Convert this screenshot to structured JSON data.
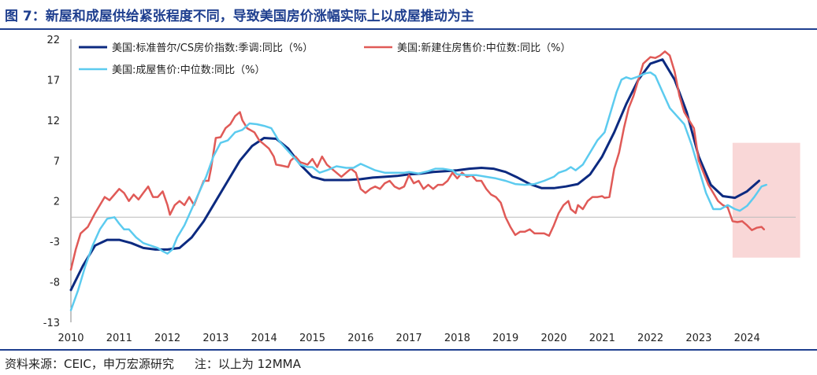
{
  "header": {
    "title": "图 7：新屋和成屋供给紧张程度不同，导致美国房价涨幅实际上以成屋推动为主"
  },
  "footer": {
    "source": "资料来源：CEIC，申万宏源研究",
    "note": "注：以上为 12MMA"
  },
  "chart_data": {
    "type": "line",
    "title": "",
    "xlabel": "",
    "ylabel": "",
    "ylim": [
      -13,
      22
    ],
    "yticks": [
      -13,
      -8,
      -3,
      2,
      7,
      12,
      17,
      22
    ],
    "xlim": [
      2010,
      2025
    ],
    "xticks": [
      "2010",
      "2011",
      "2012",
      "2013",
      "2014",
      "2015",
      "2016",
      "2017",
      "2018",
      "2019",
      "2020",
      "2021",
      "2022",
      "2023",
      "2024"
    ],
    "grid": false,
    "legend": "top-left",
    "highlight_region": {
      "x": [
        2023.7,
        2025.1
      ],
      "y": [
        -5,
        9.2
      ],
      "color": "#f9d7d7"
    },
    "series": [
      {
        "name": "美国:标准普尔/CS房价指数:季调:同比（%）",
        "color": "#0c2a80",
        "points": [
          [
            2010.0,
            -9
          ],
          [
            2010.25,
            -6
          ],
          [
            2010.5,
            -3.5
          ],
          [
            2010.75,
            -2.8
          ],
          [
            2011.0,
            -2.8
          ],
          [
            2011.25,
            -3.2
          ],
          [
            2011.5,
            -3.8
          ],
          [
            2011.75,
            -4
          ],
          [
            2012.0,
            -4
          ],
          [
            2012.25,
            -3.8
          ],
          [
            2012.5,
            -2.5
          ],
          [
            2012.75,
            -0.5
          ],
          [
            2013.0,
            2
          ],
          [
            2013.25,
            4.5
          ],
          [
            2013.5,
            7
          ],
          [
            2013.75,
            8.8
          ],
          [
            2014.0,
            9.8
          ],
          [
            2014.25,
            9.7
          ],
          [
            2014.5,
            8.5
          ],
          [
            2014.75,
            6.5
          ],
          [
            2015.0,
            5
          ],
          [
            2015.25,
            4.6
          ],
          [
            2015.5,
            4.6
          ],
          [
            2015.75,
            4.6
          ],
          [
            2016.0,
            4.7
          ],
          [
            2016.25,
            4.9
          ],
          [
            2016.5,
            5
          ],
          [
            2016.75,
            5.1
          ],
          [
            2017.0,
            5.3
          ],
          [
            2017.25,
            5.4
          ],
          [
            2017.5,
            5.6
          ],
          [
            2017.75,
            5.7
          ],
          [
            2018.0,
            5.8
          ],
          [
            2018.25,
            6
          ],
          [
            2018.5,
            6.1
          ],
          [
            2018.75,
            6
          ],
          [
            2019.0,
            5.6
          ],
          [
            2019.25,
            4.9
          ],
          [
            2019.5,
            4.1
          ],
          [
            2019.75,
            3.6
          ],
          [
            2020.0,
            3.6
          ],
          [
            2020.25,
            3.8
          ],
          [
            2020.5,
            4.1
          ],
          [
            2020.75,
            5.3
          ],
          [
            2021.0,
            7.5
          ],
          [
            2021.25,
            10.5
          ],
          [
            2021.5,
            14
          ],
          [
            2021.75,
            17
          ],
          [
            2022.0,
            19
          ],
          [
            2022.25,
            19.5
          ],
          [
            2022.5,
            17
          ],
          [
            2022.75,
            13
          ],
          [
            2023.0,
            7.5
          ],
          [
            2023.25,
            4
          ],
          [
            2023.5,
            2.6
          ],
          [
            2023.75,
            2.4
          ],
          [
            2024.0,
            3.2
          ],
          [
            2024.25,
            4.5
          ]
        ]
      },
      {
        "name": "美国:新建住房售价:中位数:同比（%）",
        "color": "#e05a57",
        "points": [
          [
            2010.0,
            -6.5
          ],
          [
            2010.1,
            -4
          ],
          [
            2010.2,
            -2
          ],
          [
            2010.35,
            -1.2
          ],
          [
            2010.5,
            0.5
          ],
          [
            2010.6,
            1.5
          ],
          [
            2010.7,
            2.5
          ],
          [
            2010.8,
            2.1
          ],
          [
            2010.9,
            2.8
          ],
          [
            2011.0,
            3.5
          ],
          [
            2011.1,
            3
          ],
          [
            2011.2,
            2
          ],
          [
            2011.3,
            2.8
          ],
          [
            2011.4,
            2.2
          ],
          [
            2011.5,
            3
          ],
          [
            2011.6,
            3.8
          ],
          [
            2011.7,
            2.5
          ],
          [
            2011.8,
            2.5
          ],
          [
            2011.9,
            3.2
          ],
          [
            2012.0,
            1.5
          ],
          [
            2012.05,
            0.3
          ],
          [
            2012.15,
            1.5
          ],
          [
            2012.25,
            2
          ],
          [
            2012.35,
            1.5
          ],
          [
            2012.45,
            2.5
          ],
          [
            2012.55,
            1.5
          ],
          [
            2012.65,
            3
          ],
          [
            2012.75,
            4.5
          ],
          [
            2012.85,
            4.5
          ],
          [
            2012.9,
            6
          ],
          [
            2013.0,
            9.8
          ],
          [
            2013.1,
            9.9
          ],
          [
            2013.2,
            11
          ],
          [
            2013.3,
            11.5
          ],
          [
            2013.4,
            12.5
          ],
          [
            2013.5,
            13
          ],
          [
            2013.55,
            12
          ],
          [
            2013.65,
            11
          ],
          [
            2013.8,
            10.5
          ],
          [
            2013.9,
            9.5
          ],
          [
            2014.0,
            9
          ],
          [
            2014.1,
            8.5
          ],
          [
            2014.2,
            7.5
          ],
          [
            2014.25,
            6.5
          ],
          [
            2014.35,
            6.4
          ],
          [
            2014.5,
            6.2
          ],
          [
            2014.55,
            7
          ],
          [
            2014.65,
            7.5
          ],
          [
            2014.75,
            6.8
          ],
          [
            2014.9,
            6.5
          ],
          [
            2015.0,
            7.2
          ],
          [
            2015.1,
            6.2
          ],
          [
            2015.2,
            7.5
          ],
          [
            2015.3,
            6.5
          ],
          [
            2015.4,
            6
          ],
          [
            2015.5,
            5.5
          ],
          [
            2015.6,
            5
          ],
          [
            2015.7,
            5.5
          ],
          [
            2015.8,
            6
          ],
          [
            2015.9,
            5.5
          ],
          [
            2016.0,
            3.5
          ],
          [
            2016.1,
            3
          ],
          [
            2016.2,
            3.5
          ],
          [
            2016.3,
            3.8
          ],
          [
            2016.4,
            3.5
          ],
          [
            2016.5,
            4.2
          ],
          [
            2016.6,
            4.5
          ],
          [
            2016.7,
            3.8
          ],
          [
            2016.8,
            3.5
          ],
          [
            2016.9,
            3.8
          ],
          [
            2017.0,
            5.2
          ],
          [
            2017.1,
            4.2
          ],
          [
            2017.2,
            4.5
          ],
          [
            2017.3,
            3.5
          ],
          [
            2017.4,
            4
          ],
          [
            2017.5,
            3.5
          ],
          [
            2017.6,
            4
          ],
          [
            2017.7,
            4
          ],
          [
            2017.8,
            4.5
          ],
          [
            2017.9,
            5.5
          ],
          [
            2018.0,
            4.8
          ],
          [
            2018.1,
            5.5
          ],
          [
            2018.2,
            5
          ],
          [
            2018.3,
            5.2
          ],
          [
            2018.4,
            4.5
          ],
          [
            2018.5,
            4.5
          ],
          [
            2018.6,
            3.5
          ],
          [
            2018.7,
            2.8
          ],
          [
            2018.8,
            2.5
          ],
          [
            2018.9,
            1.8
          ],
          [
            2019.0,
            0
          ],
          [
            2019.1,
            -1.2
          ],
          [
            2019.2,
            -2.2
          ],
          [
            2019.3,
            -1.8
          ],
          [
            2019.4,
            -1.8
          ],
          [
            2019.5,
            -1.5
          ],
          [
            2019.6,
            -2
          ],
          [
            2019.7,
            -2
          ],
          [
            2019.8,
            -2
          ],
          [
            2019.9,
            -2.3
          ],
          [
            2020.0,
            -1
          ],
          [
            2020.1,
            0.5
          ],
          [
            2020.15,
            1
          ],
          [
            2020.2,
            1.5
          ],
          [
            2020.3,
            2
          ],
          [
            2020.35,
            1
          ],
          [
            2020.45,
            0.5
          ],
          [
            2020.5,
            1.5
          ],
          [
            2020.6,
            1
          ],
          [
            2020.7,
            2
          ],
          [
            2020.8,
            2.5
          ],
          [
            2020.9,
            2.5
          ],
          [
            2021.0,
            2.6
          ],
          [
            2021.05,
            2.4
          ],
          [
            2021.15,
            2.5
          ],
          [
            2021.25,
            6
          ],
          [
            2021.35,
            8
          ],
          [
            2021.45,
            11
          ],
          [
            2021.55,
            13.5
          ],
          [
            2021.65,
            15
          ],
          [
            2021.75,
            17
          ],
          [
            2021.85,
            19
          ],
          [
            2022.0,
            19.8
          ],
          [
            2022.1,
            19.7
          ],
          [
            2022.2,
            20
          ],
          [
            2022.3,
            20.5
          ],
          [
            2022.4,
            20
          ],
          [
            2022.5,
            18
          ],
          [
            2022.6,
            15
          ],
          [
            2022.7,
            13
          ],
          [
            2022.8,
            12
          ],
          [
            2022.9,
            11
          ],
          [
            2023.0,
            7
          ],
          [
            2023.1,
            5.5
          ],
          [
            2023.2,
            4
          ],
          [
            2023.3,
            3
          ],
          [
            2023.4,
            2
          ],
          [
            2023.5,
            1.5
          ],
          [
            2023.6,
            1.2
          ],
          [
            2023.7,
            -0.5
          ],
          [
            2023.8,
            -0.6
          ],
          [
            2023.9,
            -0.5
          ],
          [
            2024.0,
            -1
          ],
          [
            2024.1,
            -1.6
          ],
          [
            2024.2,
            -1.3
          ],
          [
            2024.3,
            -1.2
          ],
          [
            2024.35,
            -1.5
          ]
        ]
      },
      {
        "name": "美国:成屋售价:中位数:同比（%）",
        "color": "#5ccbef",
        "points": [
          [
            2010.0,
            -11.5
          ],
          [
            2010.15,
            -9
          ],
          [
            2010.3,
            -6
          ],
          [
            2010.45,
            -3.5
          ],
          [
            2010.6,
            -1.5
          ],
          [
            2010.75,
            -0.2
          ],
          [
            2010.9,
            0
          ],
          [
            2011.0,
            -0.8
          ],
          [
            2011.1,
            -1.5
          ],
          [
            2011.2,
            -1.5
          ],
          [
            2011.35,
            -2.5
          ],
          [
            2011.5,
            -3.2
          ],
          [
            2011.65,
            -3.5
          ],
          [
            2011.8,
            -3.8
          ],
          [
            2011.9,
            -4.2
          ],
          [
            2012.0,
            -4.5
          ],
          [
            2012.1,
            -4
          ],
          [
            2012.2,
            -2.5
          ],
          [
            2012.35,
            -1
          ],
          [
            2012.5,
            1
          ],
          [
            2012.65,
            3
          ],
          [
            2012.8,
            5
          ],
          [
            2012.95,
            7.5
          ],
          [
            2013.1,
            9.2
          ],
          [
            2013.25,
            9.5
          ],
          [
            2013.4,
            10.5
          ],
          [
            2013.55,
            10.8
          ],
          [
            2013.7,
            11.6
          ],
          [
            2013.85,
            11.5
          ],
          [
            2014.0,
            11.3
          ],
          [
            2014.15,
            11
          ],
          [
            2014.3,
            9.5
          ],
          [
            2014.45,
            8.5
          ],
          [
            2014.6,
            7.5
          ],
          [
            2014.75,
            6.5
          ],
          [
            2014.9,
            6.2
          ],
          [
            2015.0,
            6.2
          ],
          [
            2015.15,
            5.5
          ],
          [
            2015.3,
            5.8
          ],
          [
            2015.5,
            6.3
          ],
          [
            2015.7,
            6.1
          ],
          [
            2015.85,
            6.1
          ],
          [
            2016.0,
            6.6
          ],
          [
            2016.15,
            6.2
          ],
          [
            2016.3,
            5.8
          ],
          [
            2016.5,
            5.5
          ],
          [
            2016.7,
            5.5
          ],
          [
            2016.9,
            5.5
          ],
          [
            2017.0,
            5.6
          ],
          [
            2017.2,
            5.4
          ],
          [
            2017.4,
            5.7
          ],
          [
            2017.55,
            6
          ],
          [
            2017.7,
            6
          ],
          [
            2017.9,
            5.8
          ],
          [
            2018.0,
            5.3
          ],
          [
            2018.2,
            5.2
          ],
          [
            2018.4,
            5.2
          ],
          [
            2018.6,
            5
          ],
          [
            2018.8,
            4.8
          ],
          [
            2019.0,
            4.5
          ],
          [
            2019.2,
            4.1
          ],
          [
            2019.4,
            4
          ],
          [
            2019.6,
            4.1
          ],
          [
            2019.8,
            4.5
          ],
          [
            2020.0,
            5
          ],
          [
            2020.1,
            5.5
          ],
          [
            2020.25,
            5.8
          ],
          [
            2020.35,
            6.2
          ],
          [
            2020.45,
            5.8
          ],
          [
            2020.6,
            6.5
          ],
          [
            2020.75,
            8
          ],
          [
            2020.9,
            9.5
          ],
          [
            2021.05,
            10.5
          ],
          [
            2021.2,
            13.5
          ],
          [
            2021.3,
            15.5
          ],
          [
            2021.4,
            17
          ],
          [
            2021.5,
            17.3
          ],
          [
            2021.6,
            17.1
          ],
          [
            2021.75,
            17.4
          ],
          [
            2021.9,
            17.8
          ],
          [
            2022.0,
            17.9
          ],
          [
            2022.1,
            17.5
          ],
          [
            2022.25,
            15.5
          ],
          [
            2022.4,
            13.5
          ],
          [
            2022.55,
            12.5
          ],
          [
            2022.7,
            11.5
          ],
          [
            2022.85,
            9
          ],
          [
            2023.0,
            6
          ],
          [
            2023.15,
            3
          ],
          [
            2023.3,
            1
          ],
          [
            2023.45,
            1
          ],
          [
            2023.6,
            1.5
          ],
          [
            2023.75,
            1
          ],
          [
            2023.85,
            0.8
          ],
          [
            2024.0,
            1.4
          ],
          [
            2024.15,
            2.5
          ],
          [
            2024.3,
            3.8
          ],
          [
            2024.4,
            4
          ]
        ]
      }
    ]
  }
}
